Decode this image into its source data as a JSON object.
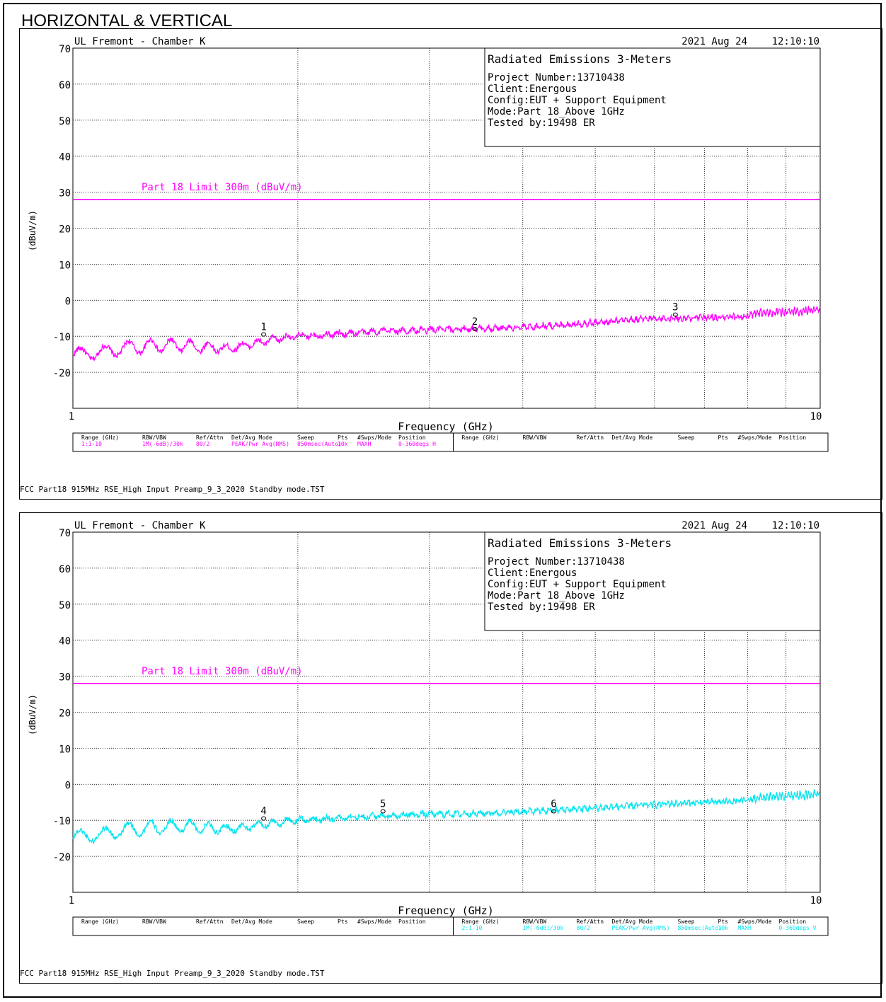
{
  "page_title": "HORIZONTAL & VERTICAL",
  "colors": {
    "limit": "#ff00ff",
    "horizontal": "#ff00ff",
    "vertical": "#00e5f0",
    "grid": "#000000"
  },
  "chart_data": [
    {
      "type": "line",
      "site": "UL Fremont - Chamber K",
      "date": "2021 Aug 24",
      "time": "12:10:10",
      "info": {
        "title": "Radiated Emissions 3-Meters",
        "project": "Project Number:13710438",
        "client": "Client:Energous",
        "config": "Config:EUT + Support Equipment",
        "mode": "Mode:Part 18_Above 1GHz",
        "tested_by": "Tested by:19498 ER"
      },
      "xlabel": "Frequency (GHz)",
      "ylabel": "(dBuV/m)",
      "x_scale": "log",
      "xlim": [
        1,
        10
      ],
      "ylim": [
        -30,
        70
      ],
      "x_tick_labels": [
        "1",
        "10"
      ],
      "y_ticks": [
        70,
        60,
        50,
        40,
        30,
        20,
        10,
        0,
        -10,
        -20
      ],
      "y_tick_labels": [
        "70",
        "60",
        "50",
        "40",
        "30",
        "20",
        "10",
        "0",
        "-10",
        "-20"
      ],
      "grid": true,
      "limit_line": {
        "name": "Part 18 Limit 300m (dBuV/m)",
        "value": 28,
        "color": "#ff00ff"
      },
      "series": [
        {
          "color": "#ff00ff",
          "x": [
            1.0,
            1.05,
            1.1,
            1.15,
            1.2,
            1.3,
            1.4,
            1.5,
            1.6,
            1.7,
            1.8,
            1.9,
            2.0,
            2.2,
            2.4,
            2.6,
            2.8,
            3.0,
            3.3,
            3.6,
            4.0,
            4.4,
            4.8,
            5.2,
            5.6,
            6.0,
            6.5,
            7.0,
            7.5,
            8.0,
            8.2,
            8.6,
            9.0,
            9.5,
            10.0
          ],
          "y": [
            -15.5,
            -14.5,
            -14.5,
            -13.5,
            -13.0,
            -12.5,
            -12.5,
            -13.0,
            -13.5,
            -12.5,
            -11.5,
            -10.5,
            -10.0,
            -9.5,
            -9.0,
            -8.5,
            -8.5,
            -8.2,
            -8.0,
            -7.8,
            -7.5,
            -7.0,
            -6.5,
            -6.0,
            -5.5,
            -5.0,
            -5.0,
            -4.8,
            -4.8,
            -4.6,
            -3.5,
            -3.5,
            -3.2,
            -3.0,
            -2.5
          ],
          "ripple": [
            1.8,
            1.8,
            1.8,
            1.8,
            1.8,
            1.8,
            1.6,
            1.4,
            1.0,
            0.8,
            0.8,
            0.8,
            0.6,
            0.5,
            0.5,
            0.5,
            0.5,
            0.5,
            0.5,
            0.5,
            0.5,
            0.5,
            0.5,
            0.5,
            0.5,
            0.5,
            0.5,
            0.5,
            0.5,
            0.5,
            0.8,
            0.8,
            0.8,
            0.8,
            0.8
          ]
        }
      ],
      "markers": [
        {
          "label": "1",
          "x": 1.8,
          "y": -9.5
        },
        {
          "label": "2",
          "x": 3.45,
          "y": -8.0
        },
        {
          "label": "3",
          "x": 6.4,
          "y": -4.0
        }
      ],
      "settings_table": {
        "headers": [
          "Range (GHz)",
          "RBW/VBW",
          "Ref/Attn",
          "Det/Avg Mode",
          "Sweep",
          "Pts",
          "#Swps/Mode",
          "Position"
        ],
        "rows": [
          [
            "1:1-10",
            "1M(-6dB)/30k",
            "80/2",
            "PEAK/Pwr Avg(RMS)",
            "850msec(Auto)",
            "10k",
            "MAXH",
            "0-360degs H"
          ],
          [
            "",
            "",
            "",
            "",
            "",
            "",
            "",
            ""
          ]
        ]
      },
      "footer": "FCC Part18 915MHz RSE_High Input Preamp_9_3_2020 Standby mode.TST"
    },
    {
      "type": "line",
      "site": "UL Fremont - Chamber K",
      "date": "2021 Aug 24",
      "time": "12:10:10",
      "info": {
        "title": "Radiated Emissions 3-Meters",
        "project": "Project Number:13710438",
        "client": "Client:Energous",
        "config": "Config:EUT + Support Equipment",
        "mode": "Mode:Part 18_Above 1GHz",
        "tested_by": "Tested by:19498 ER"
      },
      "xlabel": "Frequency (GHz)",
      "ylabel": "(dBuV/m)",
      "x_scale": "log",
      "xlim": [
        1,
        10
      ],
      "ylim": [
        -30,
        70
      ],
      "x_tick_labels": [
        "1",
        "10"
      ],
      "y_ticks": [
        70,
        60,
        50,
        40,
        30,
        20,
        10,
        0,
        -10,
        -20
      ],
      "y_tick_labels": [
        "70",
        "60",
        "50",
        "40",
        "30",
        "20",
        "10",
        "0",
        "-10",
        "-20"
      ],
      "grid": true,
      "limit_line": {
        "name": "Part 18 Limit 300m (dBuV/m)",
        "value": 28,
        "color": "#ff00ff"
      },
      "series": [
        {
          "color": "#00e5f0",
          "x": [
            1.0,
            1.05,
            1.1,
            1.15,
            1.2,
            1.3,
            1.4,
            1.5,
            1.6,
            1.7,
            1.8,
            1.9,
            2.0,
            2.2,
            2.4,
            2.6,
            2.8,
            3.0,
            3.3,
            3.6,
            4.0,
            4.4,
            4.8,
            5.2,
            5.6,
            6.0,
            6.5,
            7.0,
            7.5,
            8.0,
            8.2,
            8.6,
            9.0,
            9.5,
            10.0
          ],
          "y": [
            -15.0,
            -14.0,
            -14.0,
            -13.0,
            -12.5,
            -12.0,
            -11.5,
            -12.0,
            -12.5,
            -12.0,
            -11.0,
            -10.5,
            -10.0,
            -9.5,
            -9.0,
            -8.8,
            -8.5,
            -8.3,
            -8.2,
            -8.0,
            -7.6,
            -7.2,
            -6.8,
            -6.4,
            -6.0,
            -5.6,
            -5.3,
            -5.0,
            -4.8,
            -4.5,
            -3.8,
            -3.6,
            -3.4,
            -3.0,
            -2.8
          ],
          "ripple": [
            1.8,
            1.8,
            1.8,
            1.8,
            1.8,
            1.8,
            1.6,
            1.4,
            1.0,
            0.8,
            0.8,
            0.8,
            0.6,
            0.5,
            0.5,
            0.5,
            0.5,
            0.5,
            0.5,
            0.5,
            0.5,
            0.5,
            0.5,
            0.5,
            0.5,
            0.5,
            0.5,
            0.5,
            0.5,
            0.5,
            0.8,
            0.8,
            0.8,
            0.8,
            0.8
          ]
        }
      ],
      "markers": [
        {
          "label": "4",
          "x": 1.8,
          "y": -9.5
        },
        {
          "label": "5",
          "x": 2.6,
          "y": -7.5
        },
        {
          "label": "6",
          "x": 4.4,
          "y": -7.5
        }
      ],
      "settings_table": {
        "headers": [
          "Range (GHz)",
          "RBW/VBW",
          "Ref/Attn",
          "Det/Avg Mode",
          "Sweep",
          "Pts",
          "#Swps/Mode",
          "Position"
        ],
        "rows": [
          [
            "",
            "",
            "",
            "",
            "",
            "",
            "",
            ""
          ],
          [
            "2:1-10",
            "1M(-6dB)/30k",
            "80/2",
            "PEAK/Pwr Avg(RMS)",
            "850msec(Auto)",
            "10k",
            "MAXH",
            "0-360degs V"
          ]
        ]
      },
      "footer": "FCC Part18 915MHz RSE_High Input Preamp_9_3_2020 Standby mode.TST"
    }
  ]
}
